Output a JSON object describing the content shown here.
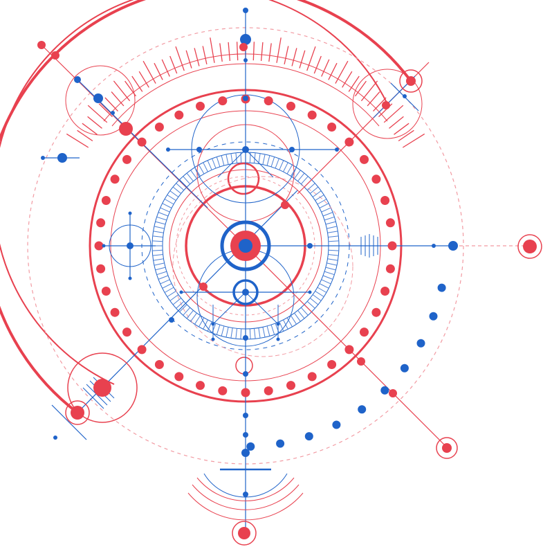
{
  "artwork": {
    "kind": "geometric circle diagram",
    "colors": {
      "red": "#e8414f",
      "blue": "#1f63c9",
      "pale_red": "#f29aa2",
      "pale_blue": "#7ea6df",
      "background": "#ffffff"
    }
  }
}
